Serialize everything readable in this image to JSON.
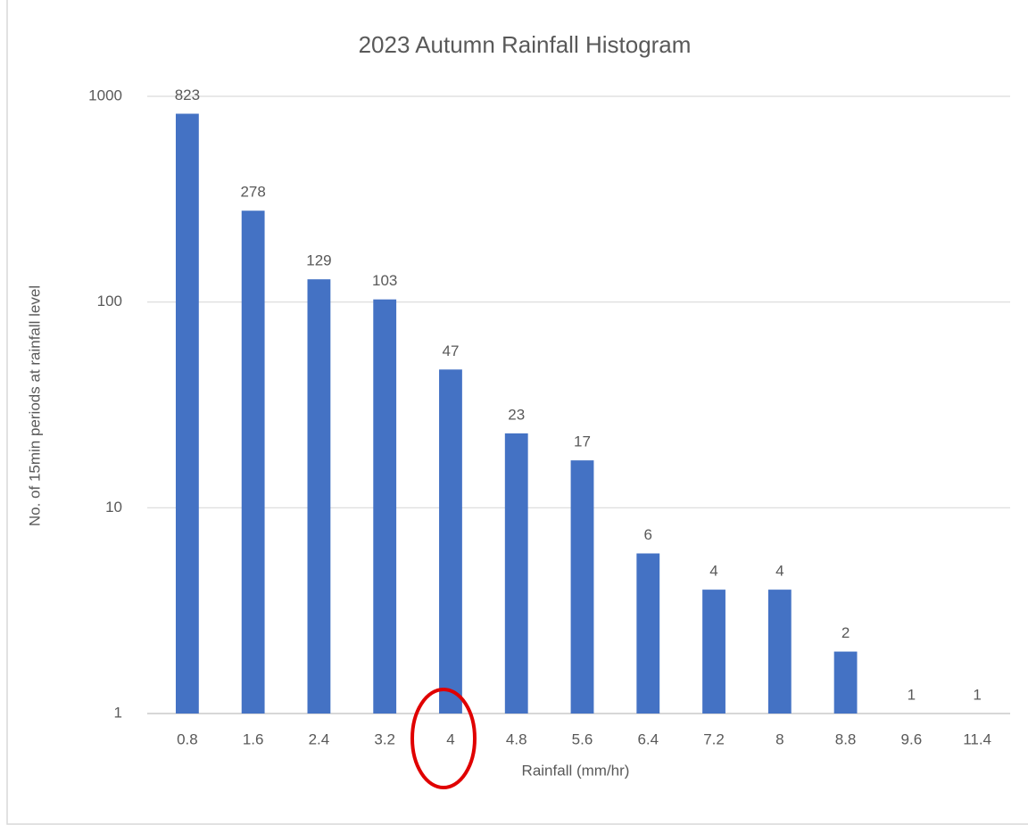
{
  "chart_data": {
    "type": "bar",
    "title": "2023 Autumn Rainfall Histogram",
    "x_label": "Rainfall (mm/hr)",
    "y_label": "No. of 15min periods at rainfall level",
    "categories": [
      "0.8",
      "1.6",
      "2.4",
      "3.2",
      "4",
      "4.8",
      "5.6",
      "6.4",
      "7.2",
      "8",
      "8.8",
      "9.6",
      "11.4"
    ],
    "values": [
      823,
      278,
      129,
      103,
      47,
      23,
      17,
      6,
      4,
      4,
      2,
      1,
      1
    ],
    "color": "#4472c4",
    "log_scale": true,
    "ylim": [
      1,
      1000
    ],
    "yticks": [
      1,
      10,
      100,
      1000
    ],
    "grid": true
  }
}
